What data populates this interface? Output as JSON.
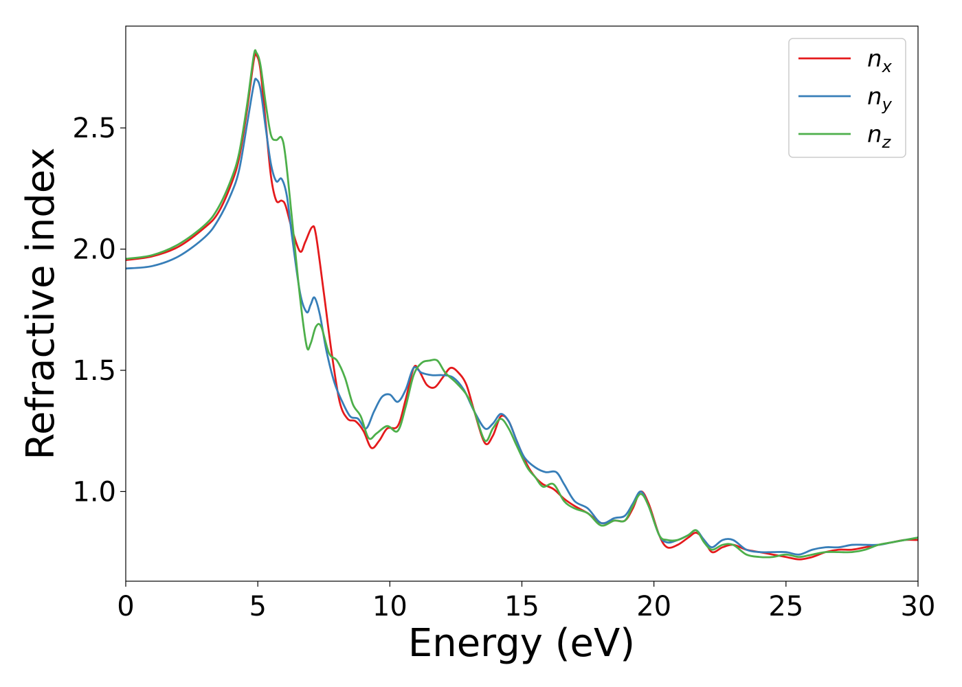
{
  "chart_data": {
    "type": "line",
    "title": "",
    "xlabel": "Energy (eV)",
    "ylabel": "Refractive index",
    "xlim": [
      0,
      30
    ],
    "ylim": [
      0.63,
      2.92
    ],
    "xticks": [
      0,
      5,
      10,
      15,
      20,
      25,
      30
    ],
    "yticks": [
      1.0,
      1.5,
      2.0,
      2.5
    ],
    "xtick_labels": [
      "0",
      "5",
      "10",
      "15",
      "20",
      "25",
      "30"
    ],
    "ytick_labels": [
      "1.0",
      "1.5",
      "2.0",
      "2.5"
    ],
    "grid": false,
    "legend": {
      "position": "top-right"
    },
    "series": [
      {
        "name": "n",
        "subscript": "x",
        "color": "#e41a1c",
        "points": [
          [
            0,
            1.955
          ],
          [
            1,
            1.97
          ],
          [
            2,
            2.01
          ],
          [
            3,
            2.09
          ],
          [
            3.5,
            2.15
          ],
          [
            4,
            2.27
          ],
          [
            4.3,
            2.38
          ],
          [
            4.6,
            2.58
          ],
          [
            4.85,
            2.78
          ],
          [
            4.95,
            2.8
          ],
          [
            5.1,
            2.74
          ],
          [
            5.3,
            2.52
          ],
          [
            5.5,
            2.3
          ],
          [
            5.7,
            2.2
          ],
          [
            5.9,
            2.2
          ],
          [
            6.05,
            2.18
          ],
          [
            6.3,
            2.08
          ],
          [
            6.6,
            1.99
          ],
          [
            6.8,
            2.03
          ],
          [
            7.05,
            2.09
          ],
          [
            7.2,
            2.06
          ],
          [
            7.5,
            1.82
          ],
          [
            7.8,
            1.57
          ],
          [
            8.1,
            1.37
          ],
          [
            8.4,
            1.3
          ],
          [
            8.7,
            1.29
          ],
          [
            9.0,
            1.25
          ],
          [
            9.3,
            1.18
          ],
          [
            9.6,
            1.21
          ],
          [
            9.9,
            1.26
          ],
          [
            10.3,
            1.27
          ],
          [
            10.6,
            1.38
          ],
          [
            10.9,
            1.51
          ],
          [
            11.1,
            1.5
          ],
          [
            11.4,
            1.44
          ],
          [
            11.7,
            1.43
          ],
          [
            12.0,
            1.47
          ],
          [
            12.3,
            1.51
          ],
          [
            12.6,
            1.49
          ],
          [
            12.9,
            1.44
          ],
          [
            13.2,
            1.33
          ],
          [
            13.6,
            1.2
          ],
          [
            13.9,
            1.23
          ],
          [
            14.2,
            1.31
          ],
          [
            14.5,
            1.29
          ],
          [
            14.8,
            1.21
          ],
          [
            15.2,
            1.11
          ],
          [
            15.5,
            1.06
          ],
          [
            15.8,
            1.03
          ],
          [
            16.2,
            1.01
          ],
          [
            16.6,
            0.97
          ],
          [
            17.0,
            0.94
          ],
          [
            17.5,
            0.91
          ],
          [
            18.0,
            0.87
          ],
          [
            18.5,
            0.88
          ],
          [
            18.9,
            0.88
          ],
          [
            19.2,
            0.93
          ],
          [
            19.5,
            1.0
          ],
          [
            19.8,
            0.95
          ],
          [
            20.2,
            0.82
          ],
          [
            20.5,
            0.77
          ],
          [
            20.9,
            0.78
          ],
          [
            21.3,
            0.81
          ],
          [
            21.6,
            0.83
          ],
          [
            21.9,
            0.8
          ],
          [
            22.2,
            0.75
          ],
          [
            22.6,
            0.77
          ],
          [
            23.0,
            0.78
          ],
          [
            23.5,
            0.76
          ],
          [
            24.0,
            0.75
          ],
          [
            24.5,
            0.74
          ],
          [
            25.0,
            0.73
          ],
          [
            25.5,
            0.72
          ],
          [
            26.0,
            0.73
          ],
          [
            26.5,
            0.75
          ],
          [
            27.0,
            0.76
          ],
          [
            27.5,
            0.76
          ],
          [
            28.0,
            0.77
          ],
          [
            28.5,
            0.78
          ],
          [
            29.0,
            0.79
          ],
          [
            29.5,
            0.8
          ],
          [
            30.0,
            0.8
          ]
        ]
      },
      {
        "name": "n",
        "subscript": "y",
        "color": "#377eb8",
        "points": [
          [
            0,
            1.92
          ],
          [
            1,
            1.93
          ],
          [
            2,
            1.97
          ],
          [
            3,
            2.05
          ],
          [
            3.5,
            2.12
          ],
          [
            4,
            2.23
          ],
          [
            4.3,
            2.33
          ],
          [
            4.6,
            2.52
          ],
          [
            4.85,
            2.68
          ],
          [
            4.95,
            2.7
          ],
          [
            5.1,
            2.66
          ],
          [
            5.3,
            2.5
          ],
          [
            5.5,
            2.35
          ],
          [
            5.7,
            2.28
          ],
          [
            5.9,
            2.29
          ],
          [
            6.1,
            2.22
          ],
          [
            6.3,
            2.05
          ],
          [
            6.6,
            1.82
          ],
          [
            6.85,
            1.74
          ],
          [
            7.0,
            1.77
          ],
          [
            7.15,
            1.8
          ],
          [
            7.35,
            1.73
          ],
          [
            7.6,
            1.58
          ],
          [
            7.9,
            1.45
          ],
          [
            8.2,
            1.37
          ],
          [
            8.5,
            1.31
          ],
          [
            8.8,
            1.3
          ],
          [
            9.1,
            1.26
          ],
          [
            9.4,
            1.33
          ],
          [
            9.7,
            1.39
          ],
          [
            10.0,
            1.4
          ],
          [
            10.3,
            1.37
          ],
          [
            10.6,
            1.42
          ],
          [
            10.9,
            1.51
          ],
          [
            11.2,
            1.49
          ],
          [
            11.6,
            1.48
          ],
          [
            12.0,
            1.48
          ],
          [
            12.4,
            1.47
          ],
          [
            12.8,
            1.42
          ],
          [
            13.2,
            1.33
          ],
          [
            13.6,
            1.26
          ],
          [
            13.9,
            1.28
          ],
          [
            14.2,
            1.32
          ],
          [
            14.5,
            1.29
          ],
          [
            14.8,
            1.21
          ],
          [
            15.1,
            1.14
          ],
          [
            15.5,
            1.1
          ],
          [
            15.9,
            1.08
          ],
          [
            16.3,
            1.08
          ],
          [
            16.6,
            1.03
          ],
          [
            17.0,
            0.96
          ],
          [
            17.5,
            0.93
          ],
          [
            18.0,
            0.87
          ],
          [
            18.5,
            0.89
          ],
          [
            18.9,
            0.9
          ],
          [
            19.2,
            0.95
          ],
          [
            19.5,
            1.0
          ],
          [
            19.8,
            0.94
          ],
          [
            20.2,
            0.82
          ],
          [
            20.5,
            0.79
          ],
          [
            20.9,
            0.8
          ],
          [
            21.3,
            0.82
          ],
          [
            21.6,
            0.84
          ],
          [
            21.9,
            0.8
          ],
          [
            22.2,
            0.77
          ],
          [
            22.6,
            0.8
          ],
          [
            23.0,
            0.8
          ],
          [
            23.5,
            0.76
          ],
          [
            24.0,
            0.75
          ],
          [
            24.5,
            0.75
          ],
          [
            25.0,
            0.75
          ],
          [
            25.5,
            0.74
          ],
          [
            26.0,
            0.76
          ],
          [
            26.5,
            0.77
          ],
          [
            27.0,
            0.77
          ],
          [
            27.5,
            0.78
          ],
          [
            28.0,
            0.78
          ],
          [
            28.5,
            0.78
          ],
          [
            29.0,
            0.79
          ],
          [
            29.5,
            0.8
          ],
          [
            30.0,
            0.81
          ]
        ]
      },
      {
        "name": "n",
        "subscript": "z",
        "color": "#4daf4a",
        "points": [
          [
            0,
            1.96
          ],
          [
            1,
            1.975
          ],
          [
            2,
            2.02
          ],
          [
            3,
            2.1
          ],
          [
            3.5,
            2.17
          ],
          [
            4,
            2.29
          ],
          [
            4.3,
            2.4
          ],
          [
            4.6,
            2.6
          ],
          [
            4.85,
            2.8
          ],
          [
            4.95,
            2.81
          ],
          [
            5.1,
            2.76
          ],
          [
            5.3,
            2.6
          ],
          [
            5.5,
            2.47
          ],
          [
            5.7,
            2.45
          ],
          [
            5.9,
            2.46
          ],
          [
            6.05,
            2.38
          ],
          [
            6.3,
            2.12
          ],
          [
            6.6,
            1.8
          ],
          [
            6.85,
            1.6
          ],
          [
            7.0,
            1.61
          ],
          [
            7.2,
            1.68
          ],
          [
            7.4,
            1.68
          ],
          [
            7.7,
            1.57
          ],
          [
            8.0,
            1.54
          ],
          [
            8.3,
            1.47
          ],
          [
            8.6,
            1.36
          ],
          [
            8.9,
            1.31
          ],
          [
            9.2,
            1.22
          ],
          [
            9.5,
            1.24
          ],
          [
            9.9,
            1.27
          ],
          [
            10.3,
            1.25
          ],
          [
            10.6,
            1.35
          ],
          [
            10.9,
            1.48
          ],
          [
            11.2,
            1.53
          ],
          [
            11.5,
            1.54
          ],
          [
            11.8,
            1.54
          ],
          [
            12.1,
            1.49
          ],
          [
            12.5,
            1.45
          ],
          [
            12.9,
            1.4
          ],
          [
            13.2,
            1.33
          ],
          [
            13.6,
            1.21
          ],
          [
            13.9,
            1.26
          ],
          [
            14.2,
            1.3
          ],
          [
            14.5,
            1.26
          ],
          [
            14.8,
            1.19
          ],
          [
            15.2,
            1.1
          ],
          [
            15.5,
            1.06
          ],
          [
            15.8,
            1.02
          ],
          [
            16.2,
            1.03
          ],
          [
            16.6,
            0.96
          ],
          [
            17.0,
            0.93
          ],
          [
            17.5,
            0.91
          ],
          [
            18.0,
            0.86
          ],
          [
            18.5,
            0.88
          ],
          [
            18.9,
            0.88
          ],
          [
            19.2,
            0.94
          ],
          [
            19.5,
            0.99
          ],
          [
            19.8,
            0.94
          ],
          [
            20.2,
            0.82
          ],
          [
            20.5,
            0.8
          ],
          [
            20.9,
            0.8
          ],
          [
            21.3,
            0.82
          ],
          [
            21.6,
            0.84
          ],
          [
            21.9,
            0.79
          ],
          [
            22.2,
            0.76
          ],
          [
            22.6,
            0.78
          ],
          [
            23.0,
            0.78
          ],
          [
            23.5,
            0.74
          ],
          [
            24.0,
            0.73
          ],
          [
            24.5,
            0.73
          ],
          [
            25.0,
            0.74
          ],
          [
            25.5,
            0.73
          ],
          [
            26.0,
            0.74
          ],
          [
            26.5,
            0.75
          ],
          [
            27.0,
            0.75
          ],
          [
            27.5,
            0.75
          ],
          [
            28.0,
            0.76
          ],
          [
            28.5,
            0.78
          ],
          [
            29.0,
            0.79
          ],
          [
            29.5,
            0.8
          ],
          [
            30.0,
            0.81
          ]
        ]
      }
    ]
  }
}
